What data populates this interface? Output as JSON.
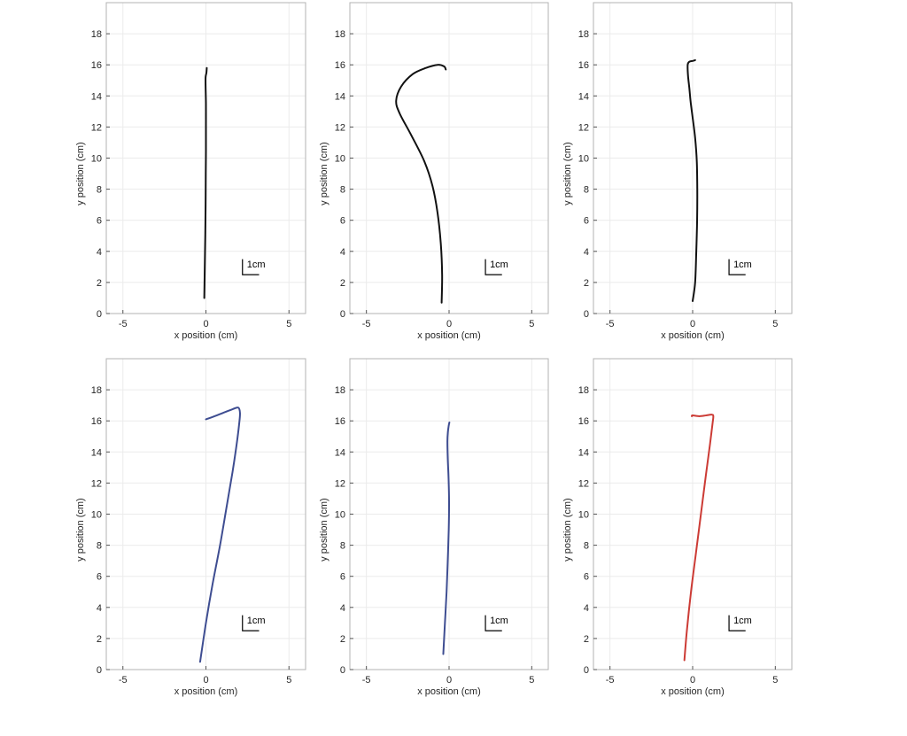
{
  "chart_data": [
    {
      "type": "line",
      "xlabel": "x position (cm)",
      "ylabel": "y position (cm)",
      "xlim": [
        -6,
        6
      ],
      "ylim": [
        0,
        20
      ],
      "xticks": [
        -5,
        0,
        5
      ],
      "yticks": [
        0,
        2,
        4,
        6,
        8,
        10,
        12,
        14,
        16,
        18
      ],
      "grid": true,
      "scale_bar": "1cm",
      "series": [
        {
          "color": "#111111",
          "x": [
            -0.1,
            -0.07,
            -0.04,
            -0.02,
            -0.01,
            0.0,
            0.0,
            0.0,
            -0.02,
            -0.02,
            0.03,
            0.05
          ],
          "y": [
            1.0,
            3.0,
            5.0,
            7.0,
            9.0,
            10.5,
            12.0,
            13.5,
            14.6,
            15.2,
            15.5,
            15.8
          ]
        }
      ]
    },
    {
      "type": "line",
      "xlabel": "x position (cm)",
      "ylabel": "y position (cm)",
      "xlim": [
        -6,
        6
      ],
      "ylim": [
        0,
        20
      ],
      "xticks": [
        -5,
        0,
        5
      ],
      "yticks": [
        0,
        2,
        4,
        6,
        8,
        10,
        12,
        14,
        16,
        18
      ],
      "grid": true,
      "scale_bar": "1cm",
      "series": [
        {
          "color": "#111111",
          "x": [
            -0.45,
            -0.42,
            -0.5,
            -0.7,
            -1.0,
            -1.5,
            -2.3,
            -3.0,
            -3.2,
            -2.9,
            -2.2,
            -1.4,
            -0.7,
            -0.3,
            -0.2
          ],
          "y": [
            0.7,
            2.5,
            4.5,
            6.5,
            8.2,
            9.8,
            11.5,
            12.9,
            13.7,
            14.6,
            15.4,
            15.8,
            16.0,
            15.9,
            15.7
          ]
        }
      ]
    },
    {
      "type": "line",
      "xlabel": "x position (cm)",
      "ylabel": "y position (cm)",
      "xlim": [
        -6,
        6
      ],
      "ylim": [
        0,
        20
      ],
      "xticks": [
        -5,
        0,
        5
      ],
      "yticks": [
        0,
        2,
        4,
        6,
        8,
        10,
        12,
        14,
        16,
        18
      ],
      "grid": true,
      "scale_bar": "1cm",
      "series": [
        {
          "color": "#111111",
          "x": [
            0.0,
            0.15,
            0.22,
            0.27,
            0.28,
            0.25,
            0.15,
            0.0,
            -0.12,
            -0.2,
            -0.28,
            -0.3,
            -0.2,
            0.0,
            0.15
          ],
          "y": [
            0.8,
            2.0,
            4.0,
            6.0,
            8.0,
            9.8,
            11.3,
            12.6,
            13.6,
            14.5,
            15.3,
            16.0,
            16.2,
            16.25,
            16.3
          ]
        }
      ]
    },
    {
      "type": "line",
      "xlabel": "x position (cm)",
      "ylabel": "y position (cm)",
      "xlim": [
        -6,
        6
      ],
      "ylim": [
        0,
        20
      ],
      "xticks": [
        -5,
        0,
        5
      ],
      "yticks": [
        0,
        2,
        4,
        6,
        8,
        10,
        12,
        14,
        16,
        18
      ],
      "grid": true,
      "scale_bar": "1cm",
      "series": [
        {
          "color": "#3e4d91",
          "x": [
            -0.35,
            0.0,
            0.4,
            0.85,
            1.25,
            1.6,
            1.85,
            2.0,
            2.05,
            1.95,
            1.6,
            1.0,
            0.4,
            0.0
          ],
          "y": [
            0.5,
            3.0,
            5.5,
            8.0,
            10.5,
            12.7,
            14.5,
            15.8,
            16.5,
            16.85,
            16.75,
            16.5,
            16.25,
            16.1
          ]
        }
      ]
    },
    {
      "type": "line",
      "xlabel": "x position (cm)",
      "ylabel": "y position (cm)",
      "xlim": [
        -6,
        6
      ],
      "ylim": [
        0,
        20
      ],
      "xticks": [
        -5,
        0,
        5
      ],
      "yticks": [
        0,
        2,
        4,
        6,
        8,
        10,
        12,
        14,
        16,
        18
      ],
      "grid": true,
      "scale_bar": "1cm",
      "series": [
        {
          "color": "#3e4d91",
          "x": [
            -0.35,
            -0.25,
            -0.15,
            -0.08,
            -0.02,
            0.0,
            -0.03,
            -0.08,
            -0.1,
            -0.07,
            -0.02,
            0.02
          ],
          "y": [
            1.0,
            3.0,
            5.0,
            7.0,
            9.0,
            10.8,
            12.3,
            13.6,
            14.7,
            15.3,
            15.7,
            15.9
          ]
        }
      ]
    },
    {
      "type": "line",
      "xlabel": "x position (cm)",
      "ylabel": "y position (cm)",
      "xlim": [
        -6,
        6
      ],
      "ylim": [
        0,
        20
      ],
      "xticks": [
        -5,
        0,
        5
      ],
      "yticks": [
        0,
        2,
        4,
        6,
        8,
        10,
        12,
        14,
        16,
        18
      ],
      "grid": true,
      "scale_bar": "1cm",
      "series": [
        {
          "color": "#cc3b35",
          "x": [
            -0.5,
            -0.35,
            -0.1,
            0.2,
            0.5,
            0.8,
            1.05,
            1.2,
            1.25,
            1.15,
            0.8,
            0.4,
            0.0,
            -0.05
          ],
          "y": [
            0.6,
            2.5,
            5.0,
            7.5,
            10.0,
            12.5,
            14.5,
            15.8,
            16.3,
            16.4,
            16.35,
            16.3,
            16.35,
            16.3
          ]
        }
      ]
    }
  ]
}
